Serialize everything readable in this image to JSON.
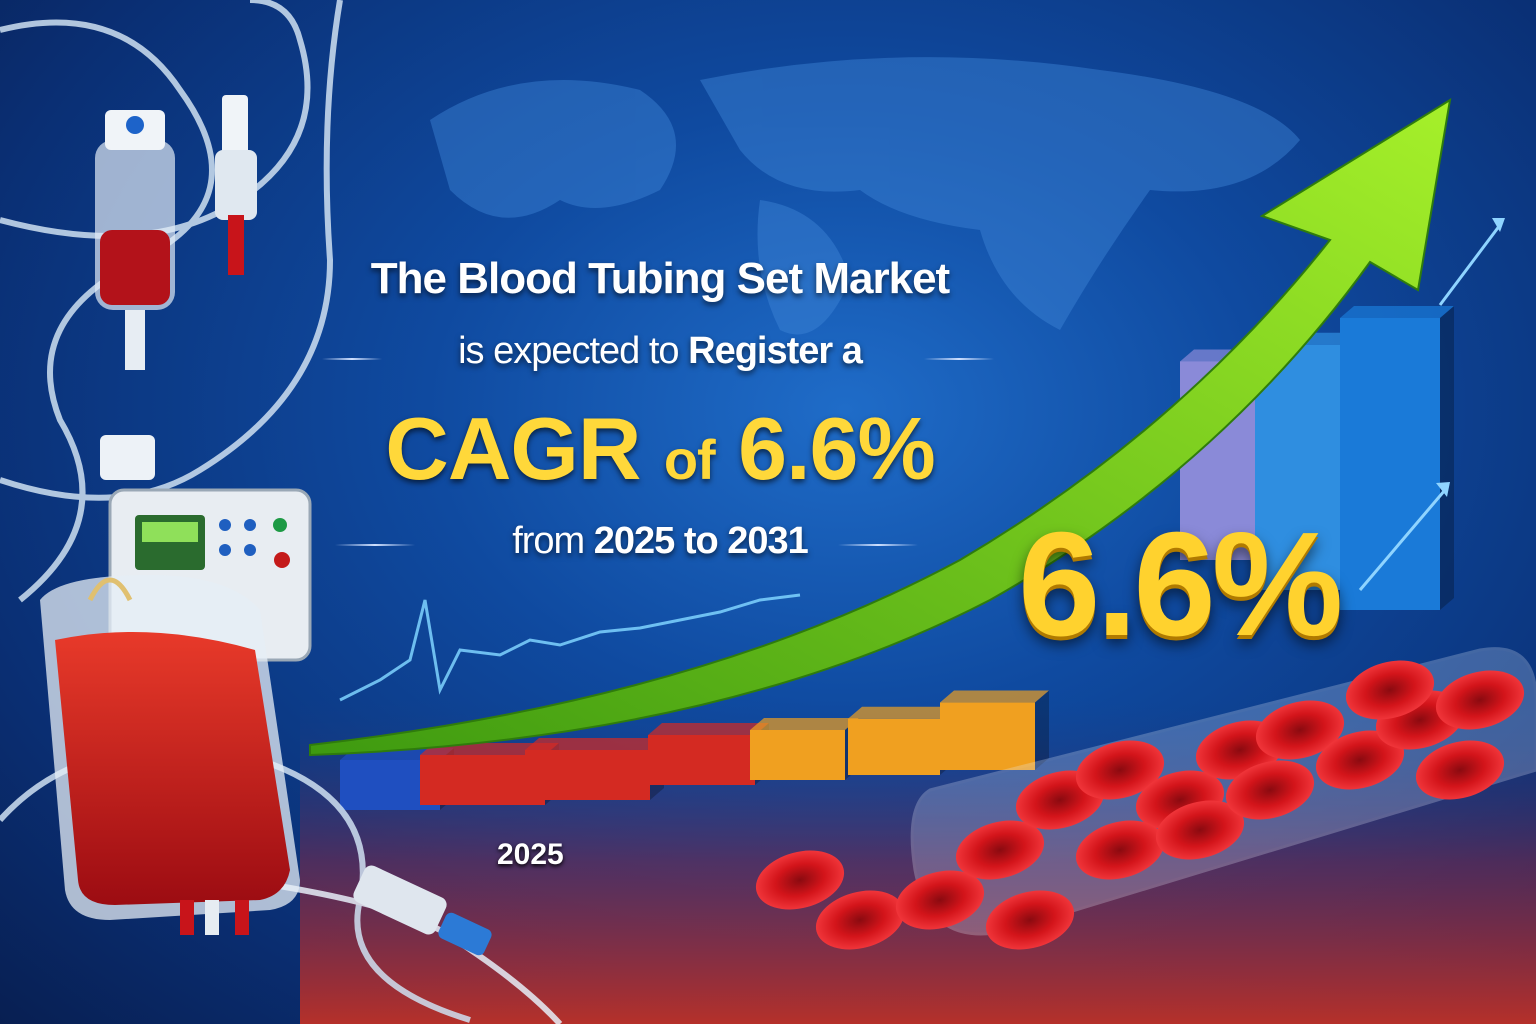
{
  "headline": {
    "line1": "The Blood Tubing Set Market",
    "line2_plain": "is expected to",
    "line2_bold": "Register a",
    "line3_cagr": "CAGR",
    "line3_of": "of",
    "line3_value": "6.6%",
    "line4_plain": "from",
    "line4_bold": "2025 to 2031"
  },
  "graphic": {
    "big_value": "6.6%",
    "start_year_label": "2025",
    "bar_growth_levels": [
      0.1,
      0.14,
      0.16,
      0.22,
      0.28,
      0.35,
      0.42,
      0.68,
      0.84,
      1.0
    ]
  },
  "colors": {
    "background": "#0f4aa0",
    "highlight_yellow": "#ffd83a",
    "arrow_green": "#8ee01e",
    "blood_red": "#d0141a"
  }
}
